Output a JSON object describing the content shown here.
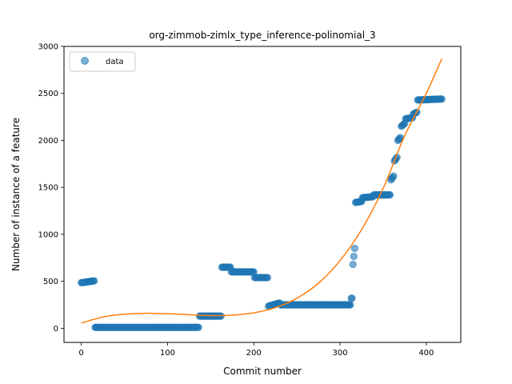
{
  "chart_data": {
    "type": "scatter",
    "title": "org-zimmob-zimlx_type_inference-polinomial_3",
    "xlabel": "Commit number",
    "ylabel": "Number of instance of a feature",
    "xlim": [
      -20,
      440
    ],
    "ylim": [
      -150,
      3000
    ],
    "xticks": [
      0,
      100,
      200,
      300,
      400
    ],
    "yticks": [
      0,
      500,
      1000,
      1500,
      2000,
      2500,
      3000
    ],
    "legend": {
      "placement": "top-left",
      "entries": [
        "data"
      ]
    },
    "grid": false,
    "colors": {
      "data": "#1f77b4",
      "fit": "#ff7f0e"
    },
    "series": [
      {
        "name": "data",
        "kind": "scatter",
        "segments": [
          {
            "x_start": 0,
            "x_end": 15,
            "y_start": 485,
            "y_end": 505
          },
          {
            "x_start": 16,
            "x_end": 136,
            "y_start": 10,
            "y_end": 10
          },
          {
            "x_start": 137,
            "x_end": 162,
            "y_start": 130,
            "y_end": 130
          },
          {
            "x_start": 163,
            "x_end": 173,
            "y_start": 650,
            "y_end": 650
          },
          {
            "x_start": 174,
            "x_end": 200,
            "y_start": 600,
            "y_end": 600
          },
          {
            "x_start": 201,
            "x_end": 216,
            "y_start": 540,
            "y_end": 540
          },
          {
            "x_start": 217,
            "x_end": 230,
            "y_start": 235,
            "y_end": 270
          },
          {
            "x_start": 231,
            "x_end": 312,
            "y_start": 250,
            "y_end": 250
          },
          {
            "x_start": 313,
            "x_end": 314,
            "y_start": 320,
            "y_end": 320
          },
          {
            "x_start": 315,
            "x_end": 317,
            "y_start": 680,
            "y_end": 850
          },
          {
            "x_start": 318,
            "x_end": 325,
            "y_start": 1340,
            "y_end": 1350
          },
          {
            "x_start": 326,
            "x_end": 338,
            "y_start": 1390,
            "y_end": 1400
          },
          {
            "x_start": 339,
            "x_end": 358,
            "y_start": 1420,
            "y_end": 1420
          },
          {
            "x_start": 359,
            "x_end": 362,
            "y_start": 1580,
            "y_end": 1620
          },
          {
            "x_start": 363,
            "x_end": 366,
            "y_start": 1780,
            "y_end": 1820
          },
          {
            "x_start": 367,
            "x_end": 370,
            "y_start": 2000,
            "y_end": 2030
          },
          {
            "x_start": 371,
            "x_end": 375,
            "y_start": 2150,
            "y_end": 2180
          },
          {
            "x_start": 376,
            "x_end": 384,
            "y_start": 2230,
            "y_end": 2240
          },
          {
            "x_start": 385,
            "x_end": 389,
            "y_start": 2280,
            "y_end": 2300
          },
          {
            "x_start": 390,
            "x_end": 418,
            "y_start": 2430,
            "y_end": 2440
          }
        ]
      },
      {
        "name": "",
        "kind": "line",
        "x": [
          0,
          25,
          50,
          75,
          100,
          125,
          150,
          175,
          200,
          225,
          250,
          275,
          300,
          325,
          350,
          375,
          400,
          418
        ],
        "y": [
          55,
          120,
          150,
          160,
          155,
          145,
          135,
          140,
          165,
          220,
          320,
          480,
          720,
          1050,
          1490,
          2050,
          2500,
          2870
        ]
      }
    ]
  }
}
